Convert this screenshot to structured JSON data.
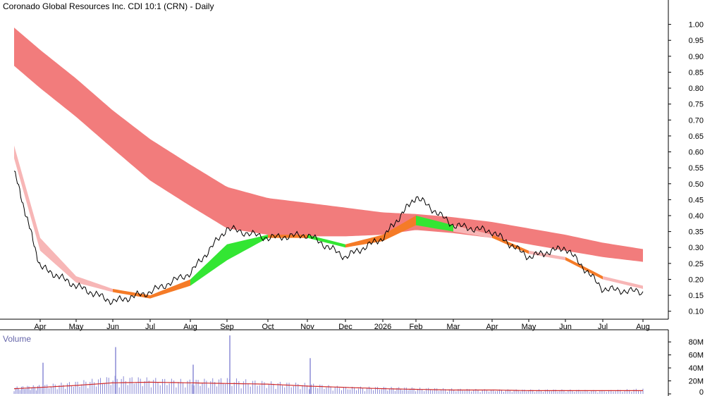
{
  "chart_data": {
    "type": "line",
    "title": "Coronado Global Resources Inc. CDI 10:1 (CRN) - Daily",
    "price_axis": {
      "ylim": [
        0.075,
        1.05
      ],
      "ticks": [
        "1.00",
        "0.95",
        "0.90",
        "0.85",
        "0.80",
        "0.75",
        "0.70",
        "0.65",
        "0.60",
        "0.55",
        "0.50",
        "0.45",
        "0.40",
        "0.35",
        "0.30",
        "0.25",
        "0.20",
        "0.15",
        "0.10"
      ]
    },
    "x_ticks": [
      "Apr",
      "May",
      "Jun",
      "Jul",
      "Aug",
      "Sep",
      "Oct",
      "Nov",
      "Dec",
      "2026",
      "Feb",
      "Mar",
      "Apr",
      "May",
      "Jun",
      "Jul",
      "Aug"
    ],
    "series": [
      {
        "name": "",
        "kind": "close",
        "x": [
          "Mar",
          "Apr",
          "May",
          "Jun",
          "Jul",
          "Aug",
          "Sep",
          "Oct",
          "Nov",
          "Dec",
          "2026",
          "Feb",
          "Mar",
          "Apr",
          "May",
          "Jun",
          "Jul",
          "Aug"
        ],
        "values": [
          0.54,
          0.24,
          0.18,
          0.13,
          0.16,
          0.22,
          0.36,
          0.33,
          0.34,
          0.27,
          0.33,
          0.46,
          0.37,
          0.35,
          0.27,
          0.3,
          0.17,
          0.16
        ]
      }
    ],
    "long_band": {
      "x": [
        "Mar",
        "Apr",
        "May",
        "Jun",
        "Jul",
        "Aug",
        "Sep",
        "Oct",
        "Nov",
        "Dec",
        "2026",
        "Feb",
        "Mar",
        "Apr",
        "May",
        "Jun",
        "Jul",
        "Aug"
      ],
      "upper": [
        0.99,
        0.92,
        0.83,
        0.73,
        0.64,
        0.56,
        0.49,
        0.455,
        0.44,
        0.425,
        0.41,
        0.405,
        0.395,
        0.38,
        0.36,
        0.34,
        0.315,
        0.295
      ],
      "lower": [
        0.87,
        0.8,
        0.71,
        0.61,
        0.51,
        0.43,
        0.36,
        0.34,
        0.335,
        0.335,
        0.34,
        0.355,
        0.345,
        0.33,
        0.31,
        0.29,
        0.27,
        0.255
      ]
    },
    "short_band": {
      "x": [
        "Mar",
        "Apr",
        "May",
        "Jun",
        "Jul",
        "Aug",
        "Sep",
        "Oct",
        "Nov",
        "Dec",
        "2026",
        "Feb",
        "Mar",
        "Apr",
        "May",
        "Jun",
        "Jul",
        "Aug"
      ],
      "upper": [
        0.62,
        0.33,
        0.21,
        0.17,
        0.15,
        0.2,
        0.31,
        0.34,
        0.34,
        0.31,
        0.34,
        0.4,
        0.37,
        0.34,
        0.29,
        0.27,
        0.21,
        0.18
      ],
      "lower": [
        0.58,
        0.29,
        0.19,
        0.16,
        0.14,
        0.18,
        0.26,
        0.33,
        0.33,
        0.3,
        0.32,
        0.37,
        0.35,
        0.33,
        0.28,
        0.26,
        0.2,
        0.17
      ],
      "color_by_x": [
        "salmon",
        "salmon",
        "salmon",
        "orange",
        "orange",
        "green",
        "green",
        "orange",
        "green",
        "orange",
        "orange",
        "green",
        "salmon",
        "orange",
        "salmon",
        "orange",
        "salmon",
        "salmon"
      ]
    },
    "volume": {
      "ylim": [
        0,
        90
      ],
      "unit": "M",
      "ticks": [
        "80M",
        "60M",
        "40M",
        "20M",
        "0"
      ],
      "x": [
        "Mar",
        "Apr",
        "May",
        "Jun",
        "Jul",
        "Aug",
        "Sep",
        "Oct",
        "Nov",
        "Dec",
        "2026",
        "Feb",
        "Mar",
        "Apr",
        "May",
        "Jun",
        "Jul",
        "Aug"
      ],
      "values": [
        8,
        10,
        14,
        20,
        18,
        16,
        18,
        14,
        12,
        8,
        8,
        7,
        6,
        5,
        5,
        5,
        4,
        6
      ],
      "ma": [
        8,
        10,
        13,
        17,
        18,
        17,
        16,
        15,
        12,
        10,
        8,
        7,
        6,
        6,
        5,
        5,
        5,
        5
      ],
      "spikes": [
        {
          "x": "Apr",
          "value": 48
        },
        {
          "x": "Jun",
          "value": 72
        },
        {
          "x": "Aug",
          "value": 45
        },
        {
          "x": "Sep",
          "value": 90
        },
        {
          "x": "Nov",
          "value": 55
        }
      ]
    },
    "colors": {
      "long_band": "#f27c7c",
      "short_band": "#f7b6b6",
      "highlight_orange": "#f57b27",
      "up_green": "#33e633",
      "volume_bar": "#8a8ad6",
      "volume_ma": "#d12b2b",
      "grid_axis": "#000000"
    },
    "grid": false,
    "legend": "none"
  }
}
